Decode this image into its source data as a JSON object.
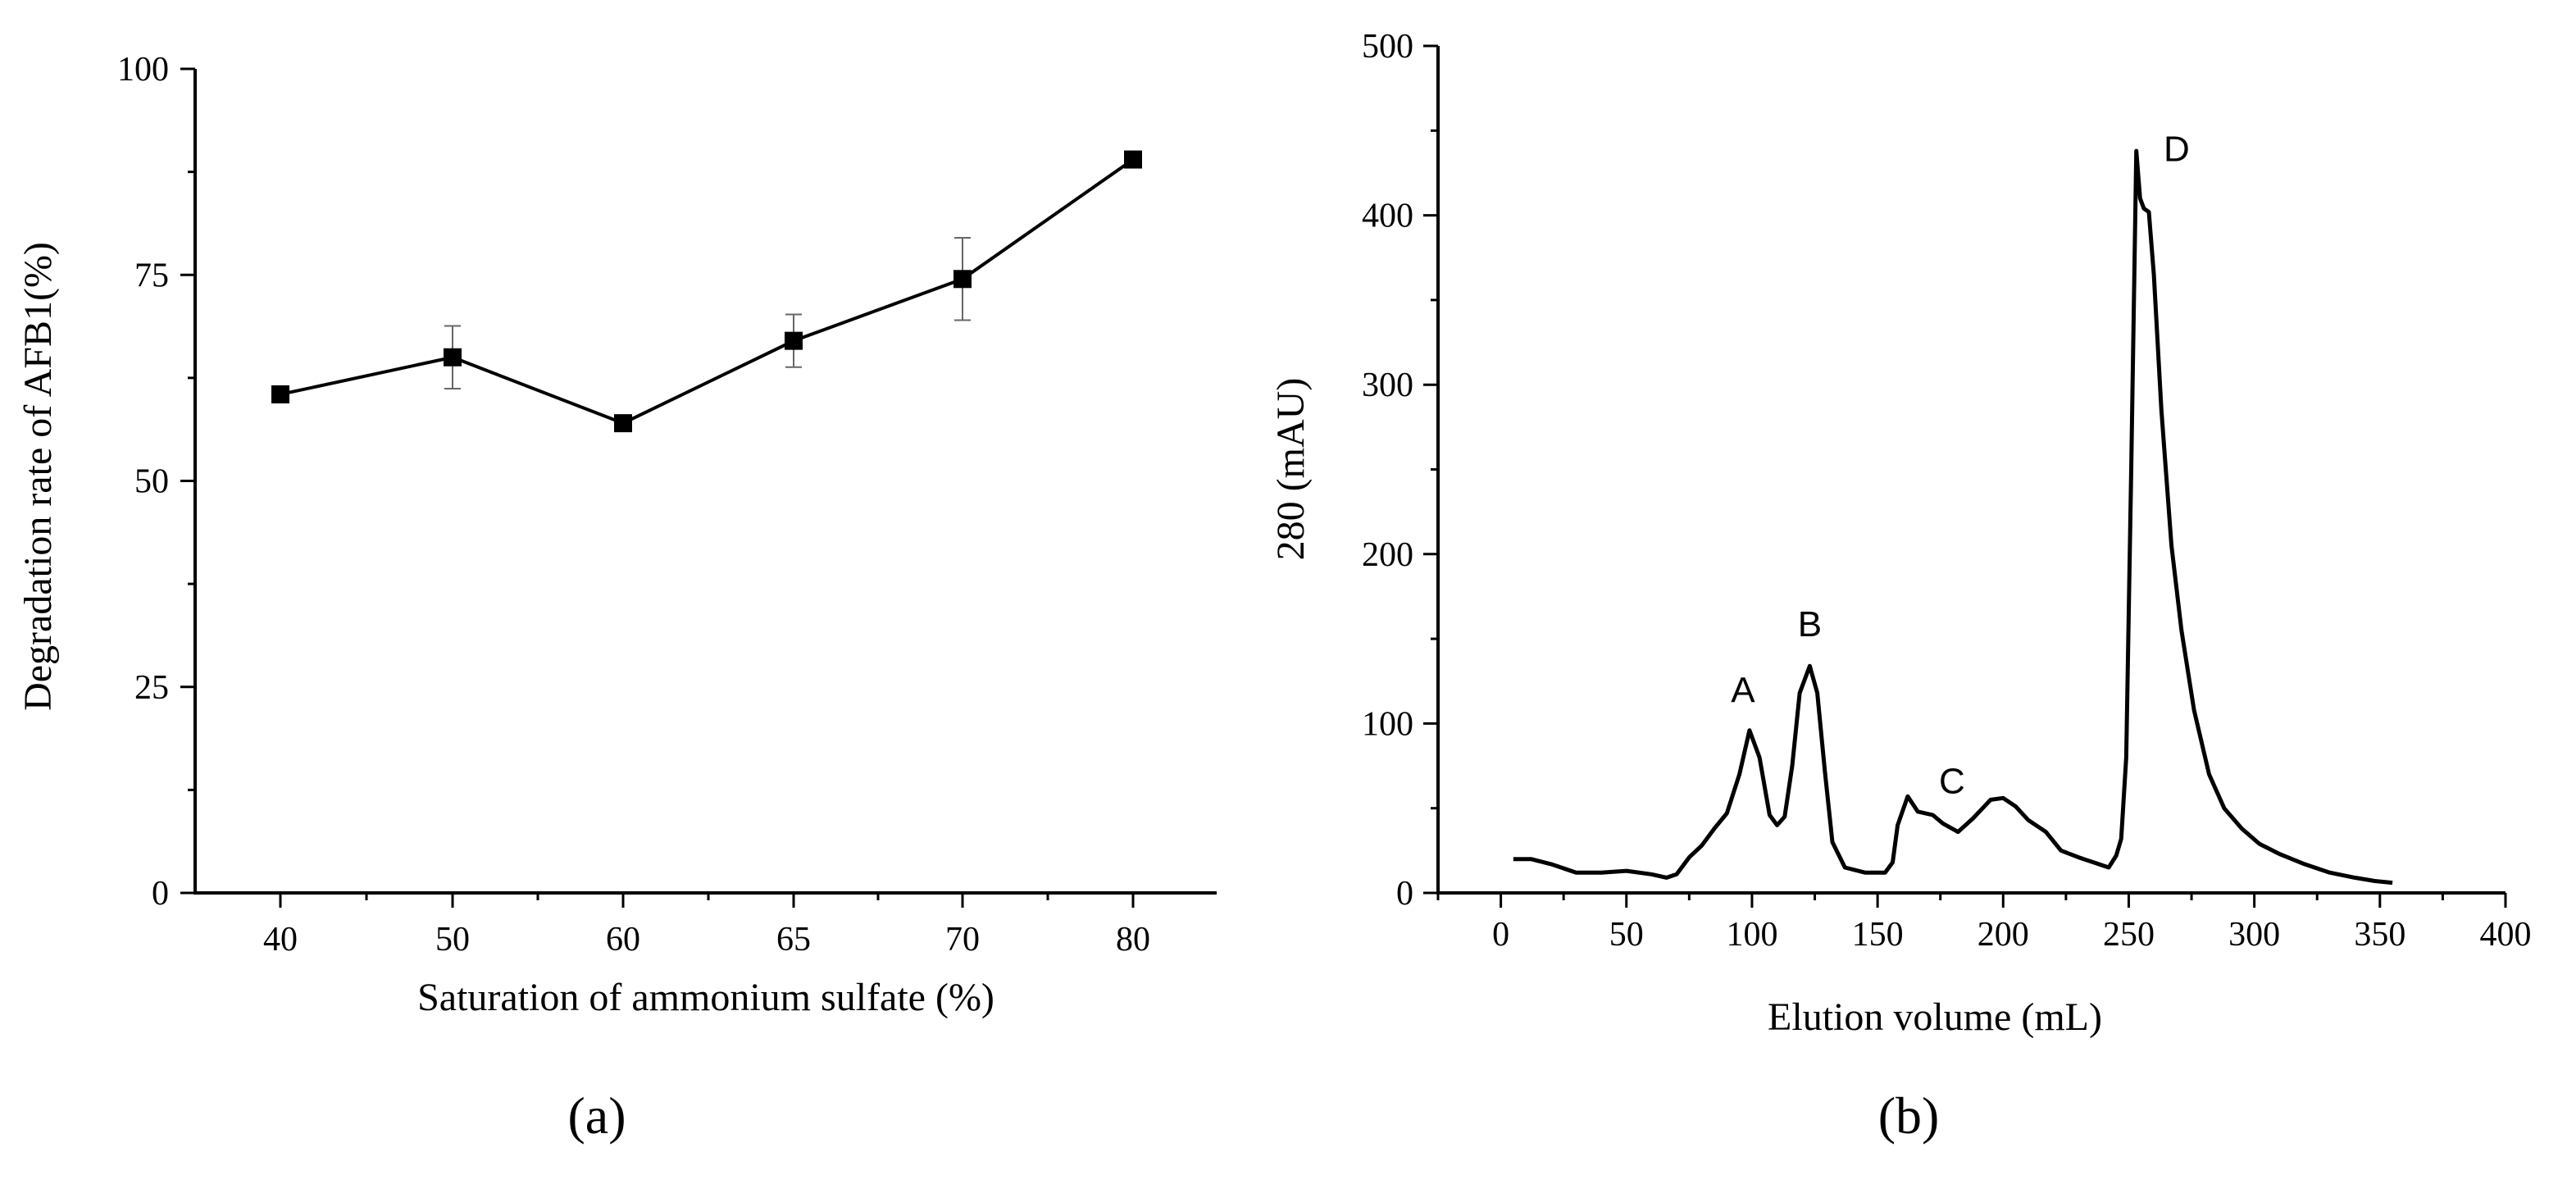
{
  "chart_data": [
    {
      "type": "line",
      "panel_label": "(a)",
      "xlabel": "Saturation of ammonium sulfate (%)",
      "ylabel": "Degradation rate of AFB1(%)",
      "categories": [
        "40",
        "50",
        "60",
        "65",
        "70",
        "80"
      ],
      "values": [
        60.5,
        65.0,
        57.0,
        67.0,
        74.5,
        89.0
      ],
      "errors": [
        1.0,
        3.8,
        0.6,
        3.2,
        5.0,
        0.5
      ],
      "yticks": [
        "0",
        "25",
        "50",
        "75",
        "100"
      ],
      "ylim": [
        0,
        100
      ],
      "marker": "square"
    },
    {
      "type": "line",
      "panel_label": "(b)",
      "xlabel": "Elution volume (mL)",
      "ylabel": "280 (mAU)",
      "xticks": [
        "0",
        "50",
        "100",
        "150",
        "200",
        "250",
        "300",
        "350",
        "400"
      ],
      "yticks": [
        "0",
        "100",
        "200",
        "300",
        "400",
        "500"
      ],
      "xlim": [
        -25,
        400
      ],
      "ylim": [
        0,
        500
      ],
      "peaks": [
        {
          "label": "A",
          "x": 99,
          "y": 96
        },
        {
          "label": "B",
          "x": 123,
          "y": 134
        },
        {
          "label": "C",
          "x": 177,
          "y": 50
        },
        {
          "label": "D",
          "x": 256,
          "y": 432
        }
      ],
      "trace": [
        [
          5,
          20
        ],
        [
          12,
          20
        ],
        [
          20,
          17
        ],
        [
          30,
          12
        ],
        [
          40,
          12
        ],
        [
          50,
          13
        ],
        [
          60,
          11
        ],
        [
          66,
          9
        ],
        [
          70,
          11
        ],
        [
          75,
          21
        ],
        [
          80,
          28
        ],
        [
          85,
          38
        ],
        [
          90,
          47
        ],
        [
          95,
          70
        ],
        [
          99,
          96
        ],
        [
          103,
          80
        ],
        [
          107,
          46
        ],
        [
          110,
          40
        ],
        [
          113,
          45
        ],
        [
          116,
          75
        ],
        [
          119,
          118
        ],
        [
          123,
          134
        ],
        [
          126,
          118
        ],
        [
          129,
          72
        ],
        [
          132,
          30
        ],
        [
          137,
          15
        ],
        [
          145,
          12
        ],
        [
          153,
          12
        ],
        [
          156,
          18
        ],
        [
          158,
          40
        ],
        [
          162,
          57
        ],
        [
          166,
          48
        ],
        [
          172,
          46
        ],
        [
          176,
          41
        ],
        [
          182,
          36
        ],
        [
          188,
          44
        ],
        [
          195,
          55
        ],
        [
          200,
          56
        ],
        [
          205,
          51
        ],
        [
          210,
          43
        ],
        [
          217,
          36
        ],
        [
          223,
          25
        ],
        [
          230,
          21
        ],
        [
          236,
          18
        ],
        [
          242,
          15
        ],
        [
          245,
          22
        ],
        [
          247,
          32
        ],
        [
          249,
          80
        ],
        [
          251,
          250
        ],
        [
          253,
          438
        ],
        [
          254.5,
          410
        ],
        [
          256,
          404
        ],
        [
          258,
          402
        ],
        [
          260,
          365
        ],
        [
          263,
          285
        ],
        [
          267,
          205
        ],
        [
          271,
          155
        ],
        [
          276,
          108
        ],
        [
          282,
          70
        ],
        [
          288,
          50
        ],
        [
          295,
          38
        ],
        [
          302,
          29
        ],
        [
          310,
          23
        ],
        [
          320,
          17
        ],
        [
          330,
          12
        ],
        [
          340,
          9
        ],
        [
          348,
          7
        ],
        [
          355,
          6
        ]
      ]
    }
  ]
}
